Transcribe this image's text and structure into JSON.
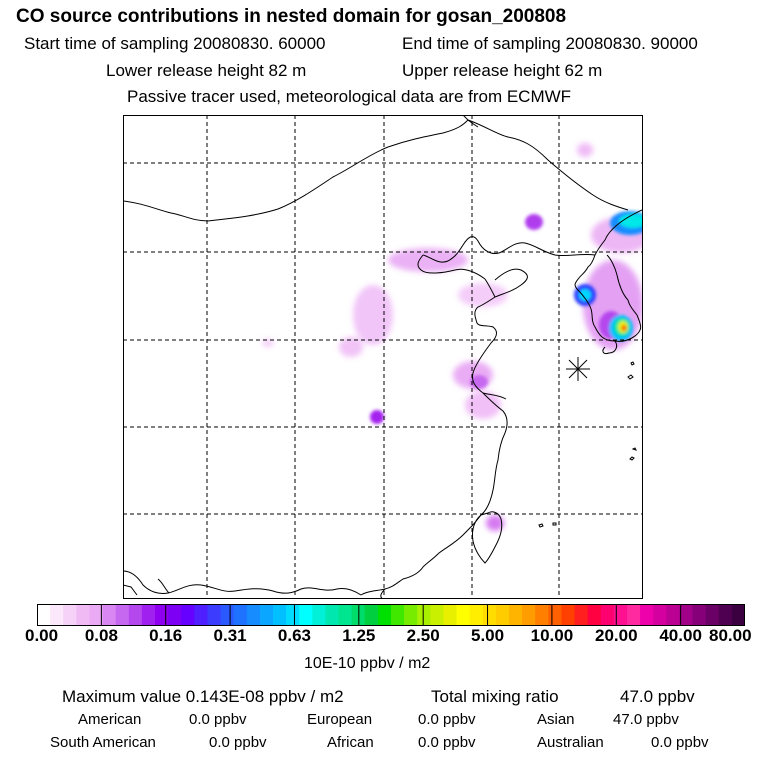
{
  "header": {
    "title": "CO  source contributions in nested domain for gosan_200808",
    "start_time": "Start time of sampling 20080830. 60000",
    "end_time": "End time of sampling 20080830. 90000",
    "lower_release": "Lower release height   82 m",
    "upper_release": "Upper release height   62 m",
    "tracer_note": "Passive tracer used, meteorological data are from ECMWF"
  },
  "colorbar": {
    "unit": "10E-10 ppbv / m2",
    "tick_labels": [
      "0.00",
      "0.08",
      "0.16",
      "0.31",
      "0.63",
      "1.25",
      "2.50",
      "5.00",
      "10.00",
      "20.00",
      "40.00",
      "80.00"
    ],
    "colors": [
      "#ffffff",
      "#fbe8fb",
      "#f6d2f8",
      "#f0baf5",
      "#ebaaf4",
      "#d987f2",
      "#c769f0",
      "#b547ee",
      "#a020ef",
      "#9000f0",
      "#7d00f5",
      "#6600ff",
      "#4f1fff",
      "#3c3cff",
      "#2a5aff",
      "#1f72ff",
      "#168cff",
      "#0aa6ff",
      "#00c0ff",
      "#00dcff",
      "#00ffff",
      "#00f0d8",
      "#00e8b0",
      "#00e58f",
      "#00dc6a",
      "#00d040",
      "#00e000",
      "#40e800",
      "#78ec00",
      "#a8f000",
      "#c8f000",
      "#e8f000",
      "#ffff00",
      "#ffee00",
      "#ffdd00",
      "#ffcc00",
      "#ffb400",
      "#ff9c00",
      "#ff8000",
      "#ff6000",
      "#ff4000",
      "#ff1f1f",
      "#ff0040",
      "#ff0070",
      "#ff1090",
      "#ff2aa0",
      "#ee00aa",
      "#d400a0",
      "#bb0094",
      "#a10088",
      "#86007a",
      "#6a0066",
      "#500050",
      "#3a0040"
    ]
  },
  "summary": {
    "max_label": "Maximum value  0.143E-08 ppbv / m2",
    "total_label": "Total mixing ratio",
    "total_value": "47.0 ppbv"
  },
  "regions": [
    {
      "name": "American",
      "value": "0.0 ppbv"
    },
    {
      "name": "European",
      "value": "0.0 ppbv"
    },
    {
      "name": "Asian",
      "value": "47.0 ppbv"
    },
    {
      "name": "South American",
      "value": "0.0 ppbv"
    },
    {
      "name": "African",
      "value": "0.0 ppbv"
    },
    {
      "name": "Australian",
      "value": "0.0 ppbv"
    }
  ]
}
